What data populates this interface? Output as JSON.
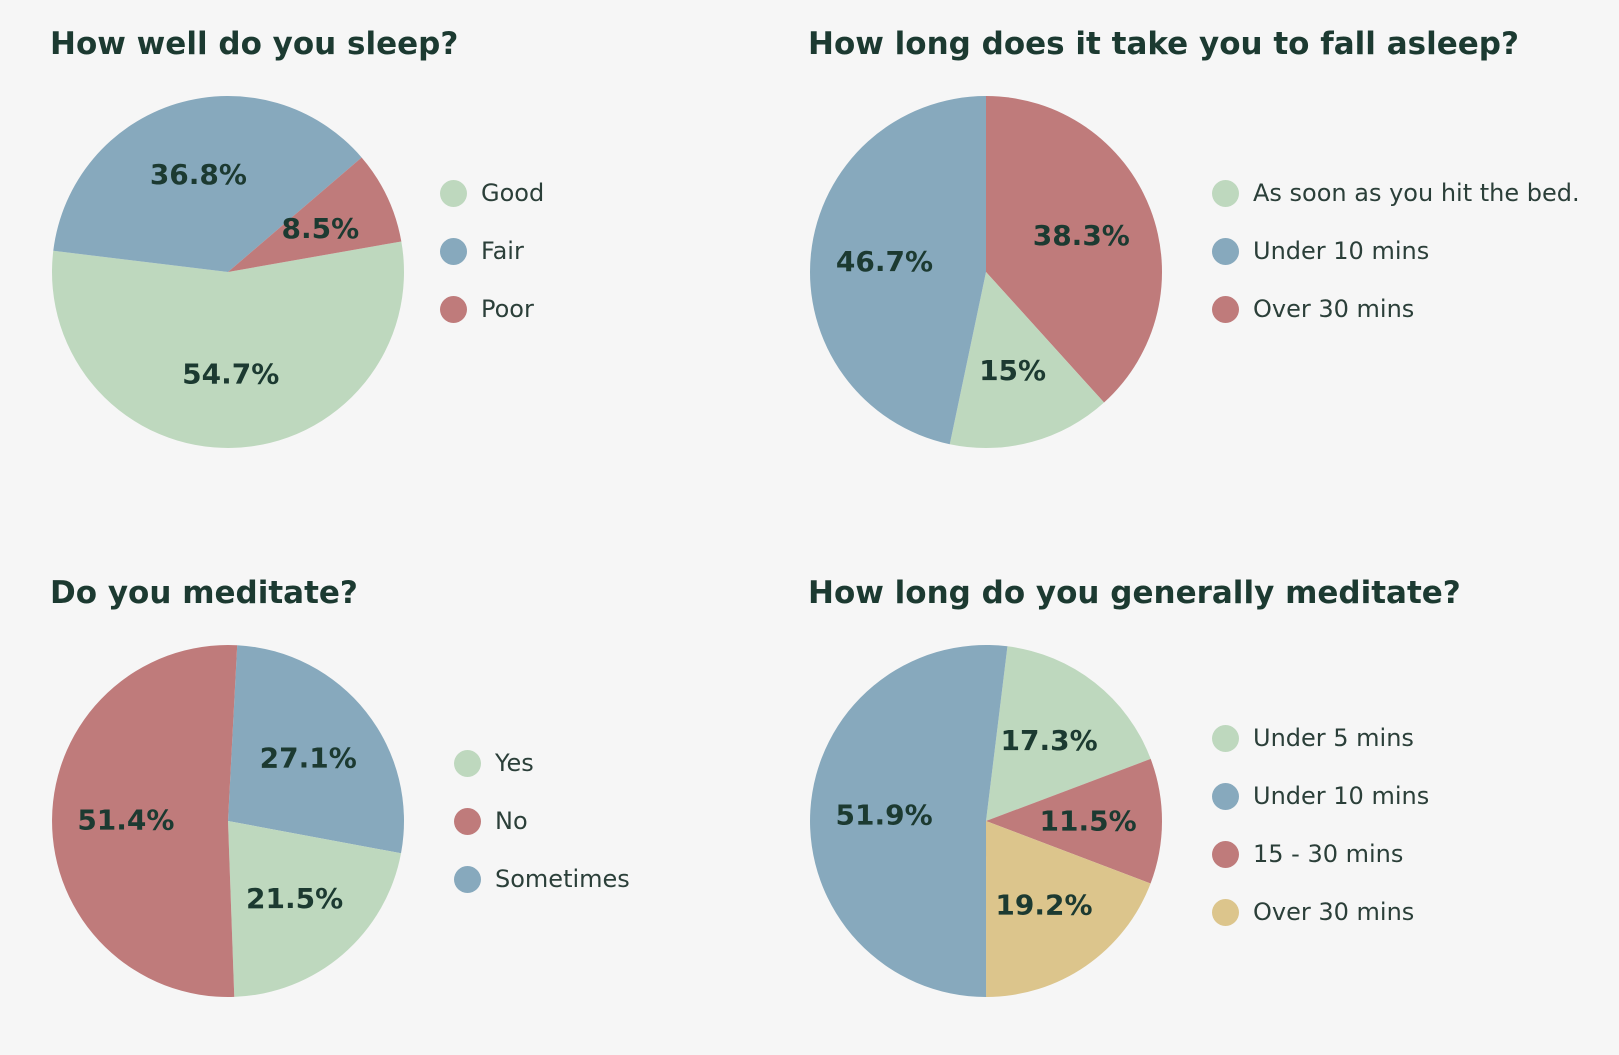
{
  "colors": {
    "green": "#bed8be",
    "blue": "#87a9bd",
    "red": "#bf7b7b",
    "yellow": "#dcc58c",
    "text": "#1c3a31"
  },
  "chart_data": [
    {
      "type": "pie",
      "title": "How well do you sleep?",
      "start_angle_deg": 80,
      "slices": [
        {
          "label": "Good",
          "value": 54.7,
          "value_label": "54.7%",
          "color": "#bed8be"
        },
        {
          "label": "Fair",
          "value": 36.8,
          "value_label": "36.8%",
          "color": "#87a9bd"
        },
        {
          "label": "Poor",
          "value": 8.5,
          "value_label": "8.5%",
          "color": "#bf7b7b"
        }
      ],
      "legend": [
        {
          "label": "Good",
          "color": "#bed8be"
        },
        {
          "label": "Fair",
          "color": "#87a9bd"
        },
        {
          "label": "Poor",
          "color": "#bf7b7b"
        }
      ],
      "legend_position": "right"
    },
    {
      "type": "pie",
      "title": "How long does it take you to fall asleep?",
      "start_angle_deg": 0,
      "slices": [
        {
          "label": "Over 30 mins",
          "value": 38.3,
          "value_label": "38.3%",
          "color": "#bf7b7b"
        },
        {
          "label": "As soon as you hit the bed.",
          "value": 15,
          "value_label": "15%",
          "color": "#bed8be"
        },
        {
          "label": "Under 10 mins",
          "value": 46.7,
          "value_label": "46.7%",
          "color": "#87a9bd"
        }
      ],
      "legend": [
        {
          "label": "As soon as you hit the bed.",
          "color": "#bed8be"
        },
        {
          "label": "Under 10 mins",
          "color": "#87a9bd"
        },
        {
          "label": "Over 30 mins",
          "color": "#bf7b7b"
        }
      ],
      "legend_position": "right"
    },
    {
      "type": "pie",
      "title": "Do you meditate?",
      "start_angle_deg": 3,
      "slices": [
        {
          "label": "Sometimes",
          "value": 27.1,
          "value_label": "27.1%",
          "color": "#87a9bd"
        },
        {
          "label": "Yes",
          "value": 21.5,
          "value_label": "21.5%",
          "color": "#bed8be"
        },
        {
          "label": "No",
          "value": 51.4,
          "value_label": "51.4%",
          "color": "#bf7b7b"
        }
      ],
      "legend": [
        {
          "label": "Yes",
          "color": "#bed8be"
        },
        {
          "label": "No",
          "color": "#bf7b7b"
        },
        {
          "label": "Sometimes",
          "color": "#87a9bd"
        }
      ],
      "legend_position": "right"
    },
    {
      "type": "pie",
      "title": "How long do you generally meditate?",
      "start_angle_deg": 7,
      "slices": [
        {
          "label": "Under 5 mins",
          "value": 17.3,
          "value_label": "17.3%",
          "color": "#bed8be"
        },
        {
          "label": "15 - 30 mins",
          "value": 11.5,
          "value_label": "11.5%",
          "color": "#bf7b7b"
        },
        {
          "label": "Over 30 mins",
          "value": 19.2,
          "value_label": "19.2%",
          "color": "#dcc58c"
        },
        {
          "label": "Under 10 mins",
          "value": 51.9,
          "value_label": "51.9%",
          "color": "#87a9bd"
        }
      ],
      "legend": [
        {
          "label": "Under 5 mins",
          "color": "#bed8be"
        },
        {
          "label": "Under 10 mins",
          "color": "#87a9bd"
        },
        {
          "label": "15 - 30 mins",
          "color": "#bf7b7b"
        },
        {
          "label": "Over 30 mins",
          "color": "#dcc58c"
        }
      ],
      "legend_position": "right"
    }
  ]
}
